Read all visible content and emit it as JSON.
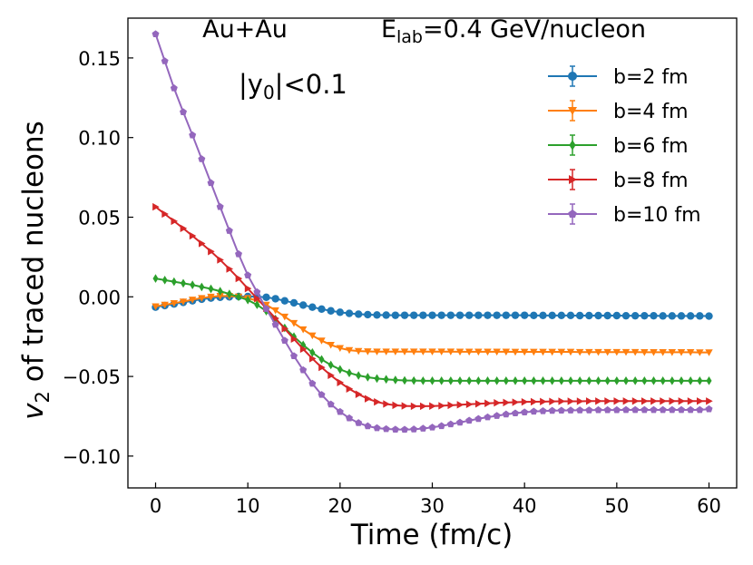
{
  "chart_data": {
    "type": "line",
    "title": {
      "collision": "Au+Au",
      "energy_prefix": "E",
      "energy_sub": "lab",
      "energy_suffix": "=0.4 GeV/nucleon"
    },
    "annotation": {
      "prefix": "|y",
      "sub": "0",
      "suffix": "|<0.1"
    },
    "xlabel": "Time (fm/c)",
    "ylabel": {
      "var": "v",
      "sub": "2",
      "rest": " of traced nucleons"
    },
    "xlim": [
      -3,
      63
    ],
    "ylim": [
      -0.12,
      0.175
    ],
    "xticks": [
      0,
      10,
      20,
      30,
      40,
      50,
      60
    ],
    "xtick_labels": [
      "0",
      "10",
      "20",
      "30",
      "40",
      "50",
      "60"
    ],
    "yticks": [
      -0.1,
      -0.05,
      0.0,
      0.05,
      0.1,
      0.15
    ],
    "ytick_labels": [
      "−0.10",
      "−0.05",
      "0.00",
      "0.05",
      "0.10",
      "0.15"
    ],
    "legend_position": "top-right",
    "x": [
      0,
      1,
      2,
      3,
      4,
      5,
      6,
      7,
      8,
      9,
      10,
      11,
      12,
      13,
      14,
      15,
      16,
      17,
      18,
      19,
      20,
      21,
      22,
      23,
      24,
      25,
      26,
      27,
      28,
      29,
      30,
      31,
      32,
      33,
      34,
      35,
      36,
      37,
      38,
      39,
      40,
      41,
      42,
      43,
      44,
      45,
      46,
      47,
      48,
      49,
      50,
      51,
      52,
      53,
      54,
      55,
      56,
      57,
      58,
      59,
      60
    ],
    "series": [
      {
        "name": "b=2 fm",
        "color": "#1f77b4",
        "marker": "circle",
        "values": [
          -0.0065,
          -0.0055,
          -0.0045,
          -0.0035,
          -0.0025,
          -0.0015,
          -0.0008,
          -0.0003,
          0.0,
          0.0002,
          0.0002,
          0.0001,
          -0.0003,
          -0.0012,
          -0.0025,
          -0.0038,
          -0.0052,
          -0.0065,
          -0.0077,
          -0.0088,
          -0.0097,
          -0.0104,
          -0.0109,
          -0.0112,
          -0.0114,
          -0.0115,
          -0.0116,
          -0.0116,
          -0.0116,
          -0.0116,
          -0.0116,
          -0.0116,
          -0.0116,
          -0.0116,
          -0.0116,
          -0.0116,
          -0.0116,
          -0.0116,
          -0.0116,
          -0.0116,
          -0.0116,
          -0.0117,
          -0.0117,
          -0.0117,
          -0.0117,
          -0.0117,
          -0.0118,
          -0.0118,
          -0.0118,
          -0.0118,
          -0.0118,
          -0.0119,
          -0.0119,
          -0.0119,
          -0.0119,
          -0.012,
          -0.012,
          -0.012,
          -0.012,
          -0.012,
          -0.0121
        ]
      },
      {
        "name": "b=4 fm",
        "color": "#ff7f0e",
        "marker": "triangle-down",
        "values": [
          -0.006,
          -0.005,
          -0.004,
          -0.003,
          -0.0018,
          -0.0008,
          0.0,
          0.0005,
          0.0005,
          0.0001,
          -0.0008,
          -0.0025,
          -0.005,
          -0.0085,
          -0.0125,
          -0.0165,
          -0.0205,
          -0.0243,
          -0.0275,
          -0.0302,
          -0.0322,
          -0.0335,
          -0.0341,
          -0.0343,
          -0.0344,
          -0.0344,
          -0.0344,
          -0.0344,
          -0.0344,
          -0.0344,
          -0.0344,
          -0.0344,
          -0.0344,
          -0.0345,
          -0.0345,
          -0.0345,
          -0.0345,
          -0.0345,
          -0.0345,
          -0.0346,
          -0.0346,
          -0.0346,
          -0.0346,
          -0.0346,
          -0.0346,
          -0.0346,
          -0.0347,
          -0.0347,
          -0.0347,
          -0.0347,
          -0.0347,
          -0.0347,
          -0.0347,
          -0.0348,
          -0.0348,
          -0.0348,
          -0.0348,
          -0.0348,
          -0.0348,
          -0.0349,
          -0.0349
        ]
      },
      {
        "name": "b=6 fm",
        "color": "#2ca02c",
        "marker": "diamond",
        "values": [
          0.0115,
          0.0105,
          0.0095,
          0.0085,
          0.0075,
          0.0062,
          0.005,
          0.0035,
          0.0018,
          0.0,
          -0.002,
          -0.005,
          -0.009,
          -0.014,
          -0.0195,
          -0.025,
          -0.0302,
          -0.035,
          -0.0393,
          -0.0428,
          -0.0456,
          -0.0478,
          -0.0494,
          -0.0505,
          -0.0513,
          -0.0518,
          -0.0522,
          -0.0525,
          -0.0526,
          -0.0527,
          -0.0527,
          -0.0527,
          -0.0527,
          -0.0527,
          -0.0527,
          -0.0527,
          -0.0527,
          -0.0527,
          -0.0527,
          -0.0527,
          -0.0527,
          -0.0527,
          -0.0527,
          -0.0527,
          -0.0527,
          -0.0527,
          -0.0527,
          -0.0527,
          -0.0527,
          -0.0527,
          -0.0527,
          -0.0527,
          -0.0527,
          -0.0527,
          -0.0527,
          -0.0527,
          -0.0527,
          -0.0527,
          -0.0527,
          -0.0527,
          -0.0527
        ]
      },
      {
        "name": "b=8 fm",
        "color": "#d62728",
        "marker": "triangle-right",
        "values": [
          0.0565,
          0.052,
          0.0475,
          0.043,
          0.0383,
          0.0335,
          0.0285,
          0.0232,
          0.0175,
          0.0115,
          0.0052,
          -0.001,
          -0.0072,
          -0.0135,
          -0.02,
          -0.0265,
          -0.0328,
          -0.0388,
          -0.0443,
          -0.0493,
          -0.0538,
          -0.0578,
          -0.0612,
          -0.064,
          -0.066,
          -0.0673,
          -0.0681,
          -0.0685,
          -0.0687,
          -0.0687,
          -0.0686,
          -0.0684,
          -0.0681,
          -0.0678,
          -0.0675,
          -0.0672,
          -0.0669,
          -0.0666,
          -0.0664,
          -0.0662,
          -0.066,
          -0.0659,
          -0.0658,
          -0.0657,
          -0.0656,
          -0.0656,
          -0.0656,
          -0.0655,
          -0.0655,
          -0.0655,
          -0.0655,
          -0.0655,
          -0.0655,
          -0.0655,
          -0.0655,
          -0.0655,
          -0.0655,
          -0.0655,
          -0.0655,
          -0.0655,
          -0.0655
        ]
      },
      {
        "name": "b=10 fm",
        "color": "#9467bd",
        "marker": "pentagon",
        "values": [
          0.165,
          0.148,
          0.131,
          0.116,
          0.1015,
          0.0865,
          0.0715,
          0.0565,
          0.0415,
          0.0268,
          0.0135,
          0.003,
          -0.0075,
          -0.0175,
          -0.0275,
          -0.0372,
          -0.046,
          -0.0545,
          -0.0615,
          -0.0675,
          -0.0722,
          -0.0762,
          -0.0792,
          -0.0812,
          -0.0824,
          -0.083,
          -0.0833,
          -0.0834,
          -0.0832,
          -0.0827,
          -0.082,
          -0.0811,
          -0.08,
          -0.0789,
          -0.0777,
          -0.0766,
          -0.0756,
          -0.0747,
          -0.0738,
          -0.0731,
          -0.0725,
          -0.072,
          -0.0717,
          -0.0715,
          -0.0714,
          -0.0713,
          -0.0712,
          -0.0712,
          -0.0711,
          -0.0711,
          -0.0711,
          -0.071,
          -0.071,
          -0.071,
          -0.071,
          -0.071,
          -0.071,
          -0.071,
          -0.071,
          -0.071,
          -0.0705
        ]
      }
    ]
  }
}
